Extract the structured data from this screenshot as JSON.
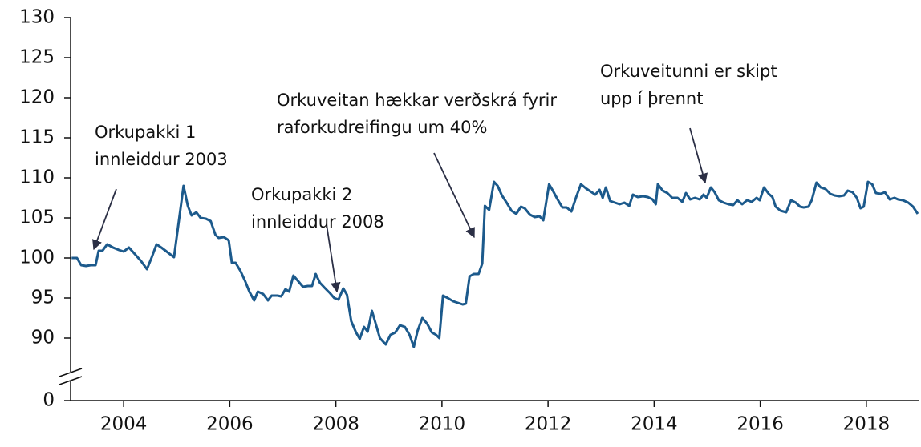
{
  "chart_data": {
    "type": "line",
    "x": [
      2003.02,
      2003.12,
      2003.2,
      2003.29,
      2003.38,
      2003.47,
      2003.53,
      2003.6,
      2003.69,
      2003.8,
      2003.91,
      2004.0,
      2004.1,
      2004.21,
      2004.33,
      2004.44,
      2004.53,
      2004.62,
      2004.71,
      2004.81,
      2004.95,
      2005.13,
      2005.21,
      2005.28,
      2005.37,
      2005.45,
      2005.55,
      2005.64,
      2005.73,
      2005.79,
      2005.89,
      2005.98,
      2006.04,
      2006.11,
      2006.2,
      2006.29,
      2006.37,
      2006.46,
      2006.53,
      2006.63,
      2006.72,
      2006.79,
      2006.9,
      2006.97,
      2007.05,
      2007.12,
      2007.2,
      2007.29,
      2007.38,
      2007.47,
      2007.55,
      2007.62,
      2007.7,
      2007.8,
      2007.89,
      2007.97,
      2008.05,
      2008.14,
      2008.21,
      2008.29,
      2008.38,
      2008.45,
      2008.53,
      2008.6,
      2008.68,
      2008.76,
      2008.83,
      2008.94,
      2009.03,
      2009.12,
      2009.21,
      2009.3,
      2009.39,
      2009.47,
      2009.54,
      2009.63,
      2009.72,
      2009.81,
      2009.89,
      2009.95,
      2010.02,
      2010.11,
      2010.21,
      2010.3,
      2010.39,
      2010.45,
      2010.52,
      2010.6,
      2010.69,
      2010.76,
      2010.81,
      2010.89,
      2010.98,
      2011.05,
      2011.13,
      2011.22,
      2011.31,
      2011.4,
      2011.49,
      2011.56,
      2011.66,
      2011.75,
      2011.84,
      2011.91,
      2012.02,
      2012.09,
      2012.18,
      2012.27,
      2012.35,
      2012.44,
      2012.53,
      2012.62,
      2012.71,
      2012.8,
      2012.89,
      2012.97,
      2013.03,
      2013.09,
      2013.17,
      2013.26,
      2013.35,
      2013.44,
      2013.53,
      2013.6,
      2013.69,
      2013.79,
      2013.88,
      2013.97,
      2014.03,
      2014.07,
      2014.16,
      2014.25,
      2014.34,
      2014.44,
      2014.53,
      2014.6,
      2014.68,
      2014.77,
      2014.86,
      2014.93,
      2014.99,
      2015.07,
      2015.14,
      2015.22,
      2015.31,
      2015.4,
      2015.49,
      2015.57,
      2015.66,
      2015.75,
      2015.84,
      2015.93,
      2015.99,
      2016.07,
      2016.16,
      2016.23,
      2016.29,
      2016.38,
      2016.49,
      2016.58,
      2016.67,
      2016.75,
      2016.82,
      2016.91,
      2016.97,
      2017.06,
      2017.14,
      2017.23,
      2017.32,
      2017.4,
      2017.49,
      2017.58,
      2017.65,
      2017.74,
      2017.82,
      2017.89,
      2017.95,
      2018.03,
      2018.11,
      2018.18,
      2018.27,
      2018.35,
      2018.44,
      2018.53,
      2018.6,
      2018.69,
      2018.79,
      2018.88,
      2018.97
    ],
    "series": [
      {
        "color": "#1c5a8c",
        "values": [
          100,
          100,
          99.1,
          99,
          99.1,
          99.1,
          100.9,
          100.9,
          101.7,
          101.3,
          101,
          100.8,
          101.3,
          100.5,
          99.6,
          98.6,
          100.1,
          101.7,
          101.3,
          100.8,
          100.1,
          109,
          106.5,
          105.3,
          105.7,
          105,
          104.9,
          104.6,
          102.9,
          102.5,
          102.6,
          102.2,
          99.4,
          99.4,
          98.4,
          97.1,
          95.8,
          94.7,
          95.8,
          95.5,
          94.7,
          95.3,
          95.3,
          95.2,
          96.1,
          95.8,
          97.8,
          97.1,
          96.4,
          96.5,
          96.5,
          98,
          96.9,
          96.2,
          95.6,
          95,
          94.8,
          96.2,
          95.4,
          92.1,
          90.7,
          89.9,
          91.4,
          90.8,
          93.4,
          91.6,
          90,
          89.2,
          90.4,
          90.7,
          91.6,
          91.4,
          90.4,
          88.9,
          90.9,
          92.5,
          91.8,
          90.7,
          90.4,
          90,
          95.3,
          95,
          94.6,
          94.4,
          94.2,
          94.3,
          97.7,
          98,
          98,
          99.3,
          106.5,
          106,
          109.5,
          109,
          107.8,
          106.9,
          105.9,
          105.5,
          106.4,
          106.2,
          105.4,
          105.1,
          105.2,
          104.7,
          109.2,
          108.4,
          107.3,
          106.3,
          106.3,
          105.8,
          107.6,
          109.2,
          108.7,
          108.3,
          107.9,
          108.5,
          107.5,
          108.8,
          107.1,
          106.9,
          106.7,
          106.9,
          106.5,
          107.9,
          107.6,
          107.7,
          107.6,
          107.3,
          106.7,
          109.2,
          108.4,
          108.1,
          107.5,
          107.5,
          107,
          108.1,
          107.3,
          107.5,
          107.3,
          107.9,
          107.5,
          108.8,
          108.2,
          107.2,
          106.9,
          106.7,
          106.6,
          107.2,
          106.7,
          107.2,
          107,
          107.5,
          107.2,
          108.8,
          108,
          107.6,
          106.4,
          105.9,
          105.7,
          107.2,
          106.9,
          106.4,
          106.3,
          106.4,
          107.2,
          109.4,
          108.8,
          108.6,
          108,
          107.8,
          107.7,
          107.8,
          108.4,
          108.2,
          107.5,
          106.2,
          106.4,
          109.5,
          109.2,
          108.1,
          108,
          108.2,
          107.3,
          107.5,
          107.3,
          107.2,
          106.9,
          106.4,
          105.5
        ]
      }
    ],
    "xlim": [
      2003,
      2019
    ],
    "xticks": [
      2004,
      2006,
      2008,
      2010,
      2012,
      2014,
      2016,
      2018
    ],
    "ylim": [
      0,
      130
    ],
    "y_break": [
      0,
      85
    ],
    "yticks": [
      0,
      90,
      95,
      100,
      105,
      110,
      115,
      120,
      125,
      130
    ],
    "annotations": [
      {
        "lines": [
          "Orkupakki 1",
          "innleiddur 2003"
        ]
      },
      {
        "lines": [
          "Orkupakki 2",
          "innleiddur 2008"
        ]
      },
      {
        "lines": [
          "Orkuveitan hækkar verðskrá fyrir",
          "raforkudreifingu um 40%"
        ]
      },
      {
        "lines": [
          "Orkuveitunni er skipt",
          "upp í þrennt"
        ]
      }
    ]
  }
}
